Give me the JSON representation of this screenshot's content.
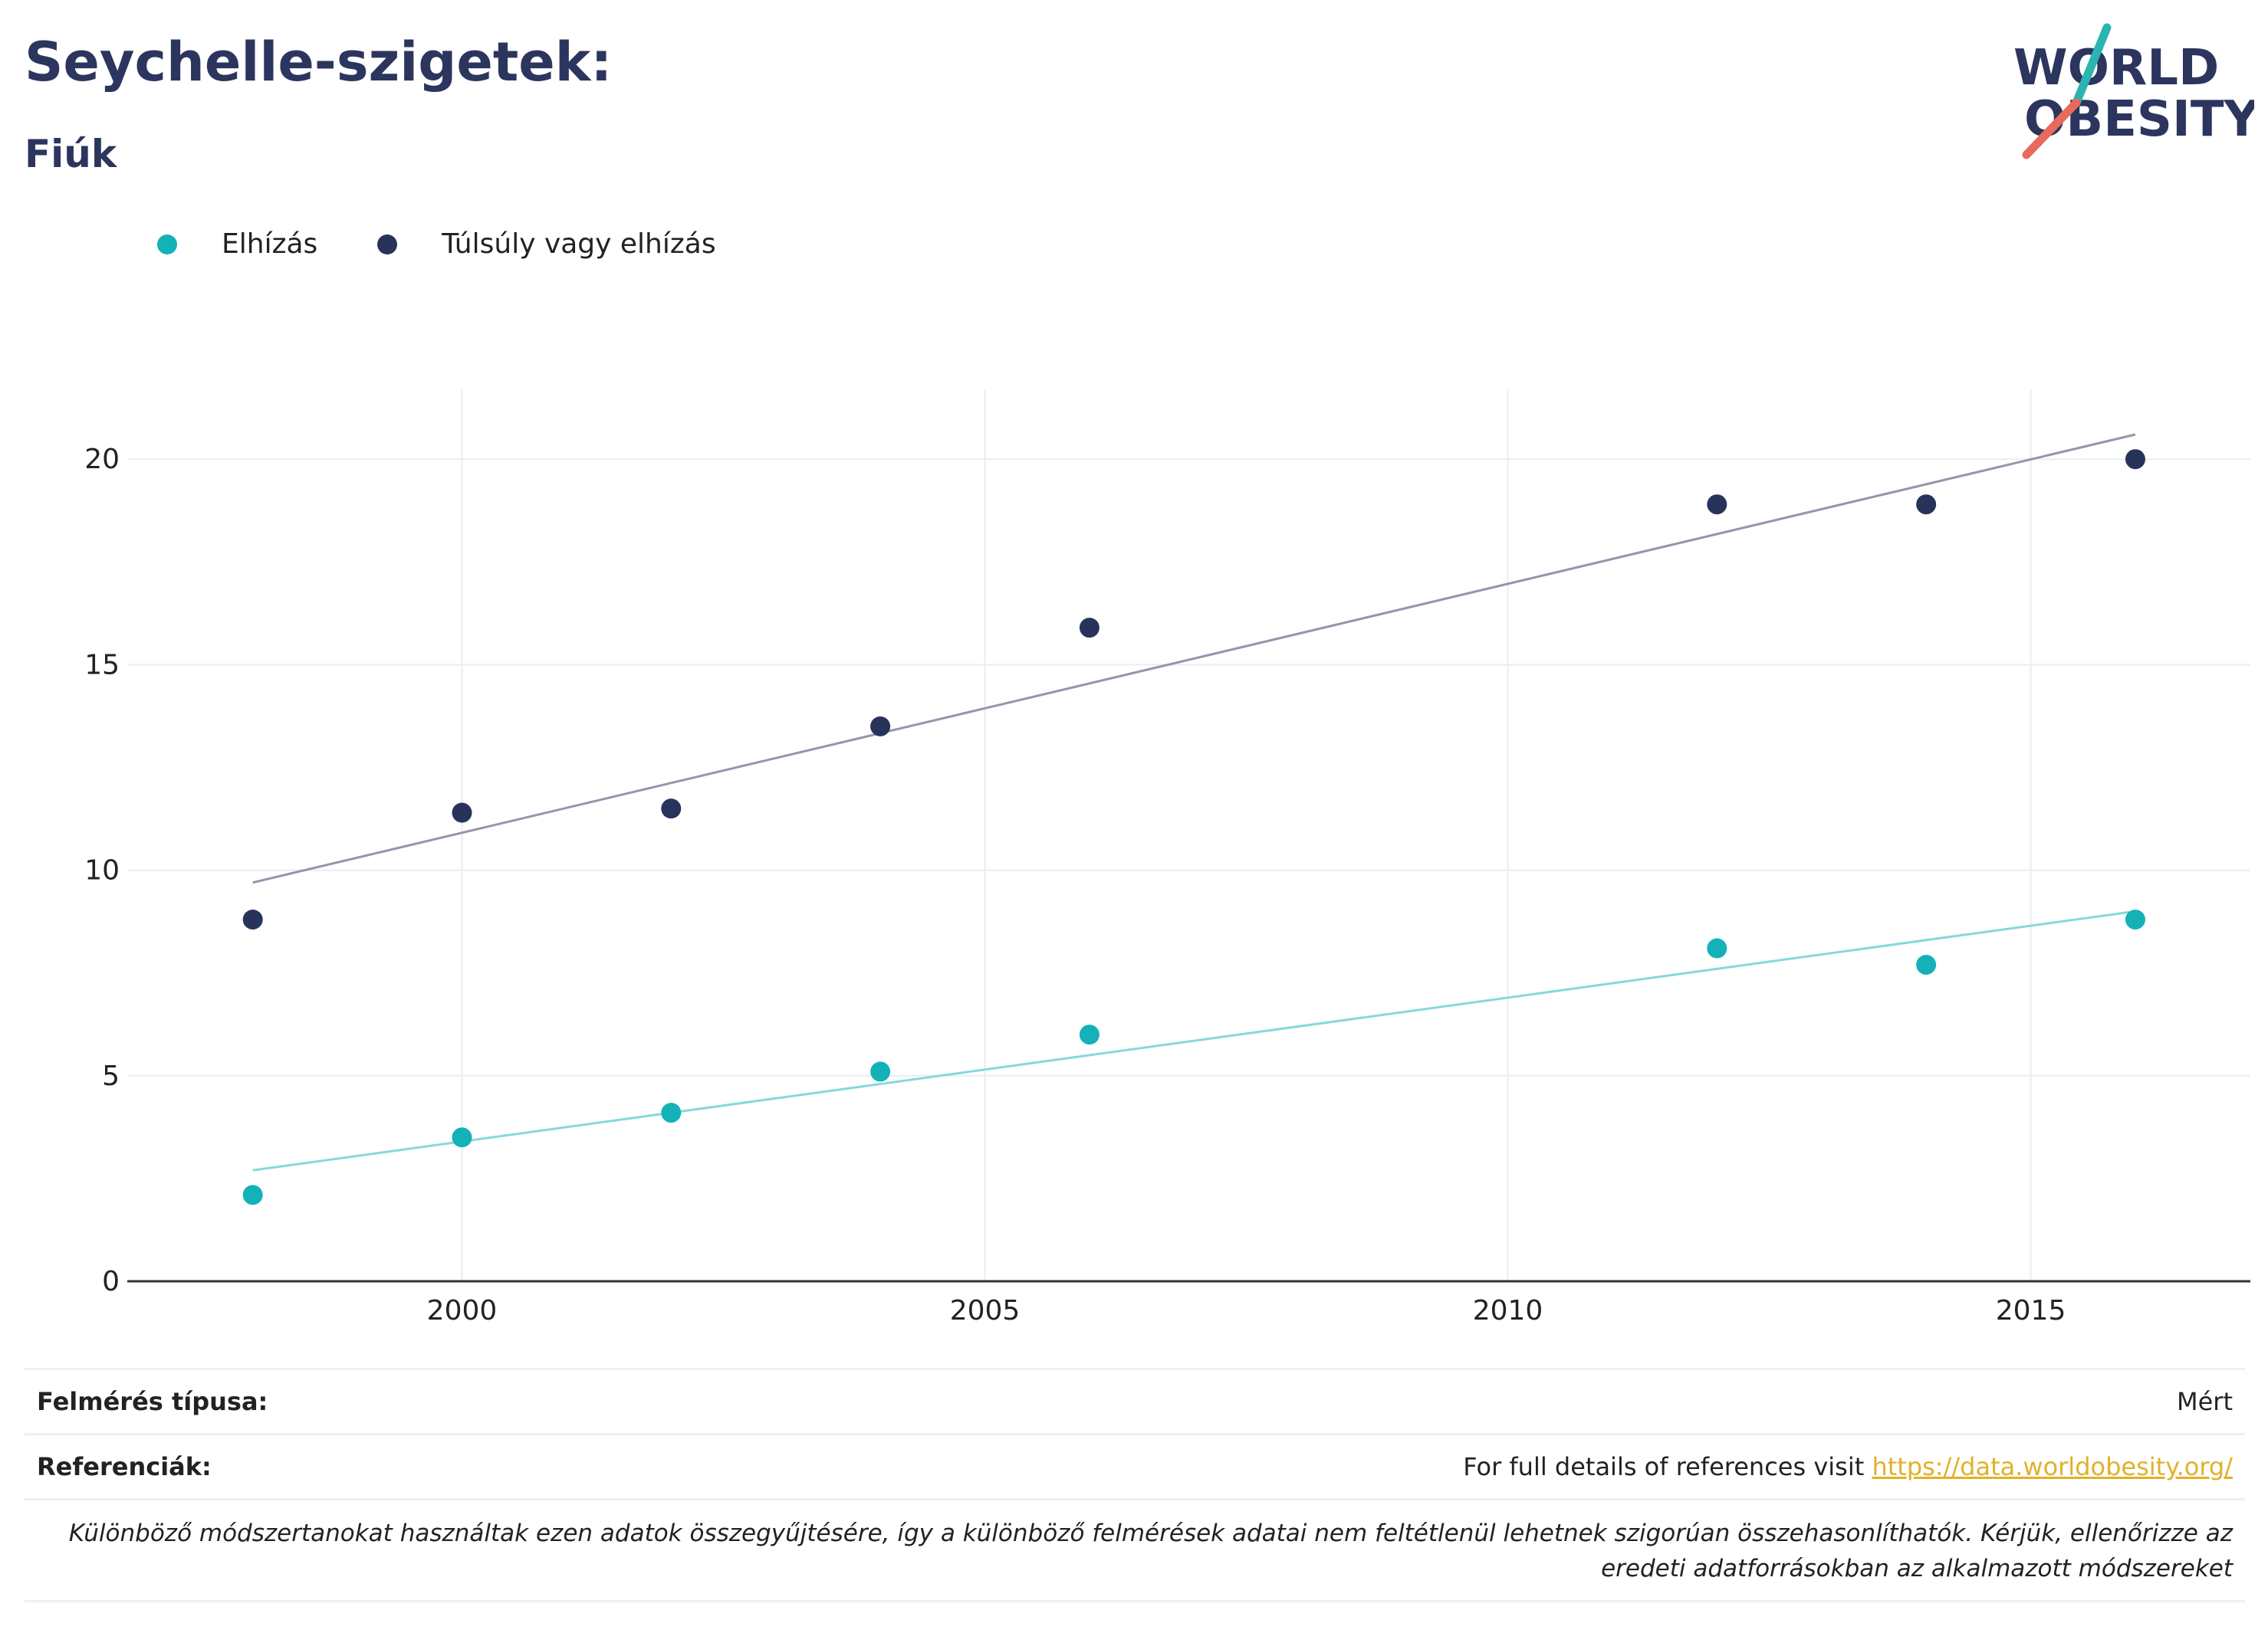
{
  "header": {
    "title": "Seychelle-szigetek:",
    "subtitle": "Fiúk",
    "logo_line1": "WORLD",
    "logo_line2": "OBESITY"
  },
  "colors": {
    "obesity": "#14b1b8",
    "overweight": "#28335c",
    "obesity_trend": "#86d8dc",
    "overweight_trend": "#9594ad",
    "grid": "#e9edf1",
    "axis": "#333333",
    "title": "#2c355e",
    "link": "#e0b12a"
  },
  "chart_data": {
    "type": "scatter",
    "xlim": [
      1996.8,
      2017.1
    ],
    "ylim": [
      0,
      21.7
    ],
    "x_ticks": [
      2000,
      2005,
      2010,
      2015
    ],
    "y_ticks": [
      0,
      5,
      10,
      15,
      20
    ],
    "grid": true,
    "legend_position": "top-left",
    "series": [
      {
        "name": "Elhízás",
        "color_key": "obesity",
        "points": [
          [
            1998,
            2.1
          ],
          [
            2000,
            3.5
          ],
          [
            2002,
            4.1
          ],
          [
            2004,
            5.1
          ],
          [
            2006,
            6.0
          ],
          [
            2012,
            8.1
          ],
          [
            2014,
            7.7
          ],
          [
            2016,
            8.8
          ]
        ],
        "trend": [
          [
            1998,
            2.7
          ],
          [
            2016,
            9.0
          ]
        ]
      },
      {
        "name": "Túlsúly vagy elhízás",
        "color_key": "overweight",
        "points": [
          [
            1998,
            8.8
          ],
          [
            2000,
            11.4
          ],
          [
            2002,
            11.5
          ],
          [
            2004,
            13.5
          ],
          [
            2006,
            15.9
          ],
          [
            2012,
            18.9
          ],
          [
            2014,
            18.9
          ],
          [
            2016,
            20.0
          ]
        ],
        "trend": [
          [
            1998,
            9.7
          ],
          [
            2016,
            20.6
          ]
        ]
      }
    ]
  },
  "info": {
    "survey_type_label": "Felmérés típusa:",
    "survey_type_value": "Mért",
    "references_label": "Referenciák:",
    "references_text": "For full details of references visit ",
    "references_link": "https://data.worldobesity.org/",
    "note": "Különböző módszertanokat használtak ezen adatok összegyűjtésére, így a különböző felmérések adatai nem feltétlenül lehetnek szigorúan összehasonlíthatók. Kérjük, ellenőrizze az eredeti adatforrásokban az alkalmazott módszereket"
  }
}
